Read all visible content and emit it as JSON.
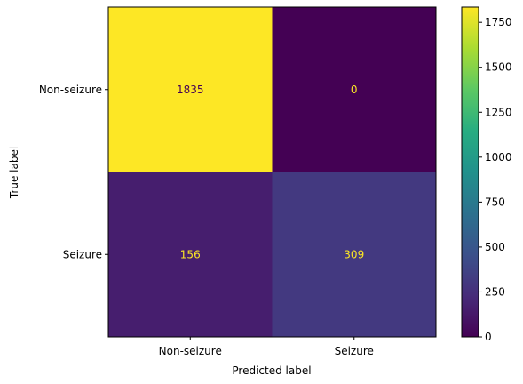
{
  "chart_data": {
    "type": "heatmap",
    "title": "",
    "xlabel": "Predicted label",
    "ylabel": "True label",
    "x_categories": [
      "Non-seizure",
      "Seizure"
    ],
    "y_categories": [
      "Non-seizure",
      "Seizure"
    ],
    "values": [
      [
        1835,
        0
      ],
      [
        156,
        309
      ]
    ],
    "colormap": "viridis",
    "colorbar": {
      "min": 0,
      "max": 1835,
      "ticks": [
        "0",
        "250",
        "500",
        "750",
        "1000",
        "1250",
        "1500",
        "1750"
      ]
    },
    "grid": false,
    "text_colors": {
      "on_dark": "#fde725",
      "on_light": "#440154"
    }
  }
}
